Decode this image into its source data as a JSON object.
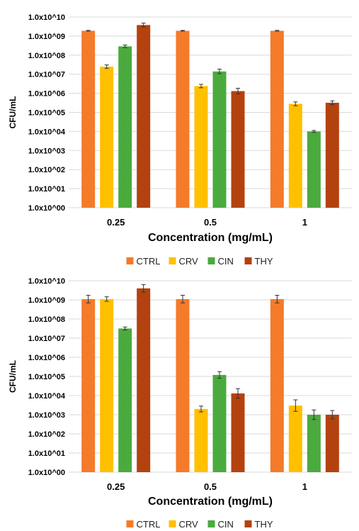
{
  "chart_data": [
    {
      "type": "bar",
      "scale": "log",
      "ylabel": "CFU/mL",
      "xlabel": "Concentration (mg/mL)",
      "ylim": [
        1,
        10000000000
      ],
      "y_tick_labels": [
        "1.0x10^00",
        "1.0x10^01",
        "1.0x10^02",
        "1.0x10^03",
        "1.0x10^04",
        "1.0x10^05",
        "1.0x10^06",
        "1.0x10^07",
        "1.0x10^08",
        "1.0x10^09",
        "1.0x10^10"
      ],
      "categories": [
        "0.25",
        "0.5",
        "1"
      ],
      "grid": true,
      "legend_position": "bottom",
      "series": [
        {
          "name": "CTRL",
          "color": "#F47B2A",
          "values": [
            1900000000,
            1900000000,
            1900000000
          ],
          "error": [
            0.02,
            0.02,
            0.02
          ]
        },
        {
          "name": "CRV",
          "color": "#FFC000",
          "values": [
            25000000,
            2400000,
            280000
          ],
          "error": [
            0.09,
            0.09,
            0.1
          ]
        },
        {
          "name": "CIN",
          "color": "#4BAA3E",
          "values": [
            290000000,
            14000000,
            10000
          ],
          "error": [
            0.07,
            0.12,
            0.05
          ]
        },
        {
          "name": "THY",
          "color": "#B4420E",
          "values": [
            3800000000,
            1300000,
            320000
          ],
          "error": [
            0.1,
            0.15,
            0.1
          ]
        }
      ]
    },
    {
      "type": "bar",
      "scale": "log",
      "ylabel": "CFU/mL",
      "xlabel": "Concentration (mg/mL)",
      "ylim": [
        1,
        10000000000
      ],
      "y_tick_labels": [
        "1.0x10^00",
        "1.0x10^01",
        "1.0x10^02",
        "1.0x10^03",
        "1.0x10^04",
        "1.0x10^05",
        "1.0x10^06",
        "1.0x10^07",
        "1.0x10^08",
        "1.0x10^09",
        "1.0x10^10"
      ],
      "categories": [
        "0.25",
        "0.5",
        "1"
      ],
      "grid": true,
      "legend_position": "bottom",
      "series": [
        {
          "name": "CTRL",
          "color": "#F47B2A",
          "values": [
            1100000000,
            1100000000,
            1100000000
          ],
          "error": [
            0.2,
            0.2,
            0.2
          ]
        },
        {
          "name": "CRV",
          "color": "#FFC000",
          "values": [
            1100000000,
            2000,
            3000
          ],
          "error": [
            0.12,
            0.15,
            0.3
          ]
        },
        {
          "name": "CIN",
          "color": "#4BAA3E",
          "values": [
            32000000,
            120000,
            1000
          ],
          "error": [
            0.08,
            0.17,
            0.25
          ]
        },
        {
          "name": "THY",
          "color": "#B4420E",
          "values": [
            4000000000,
            13000,
            1000
          ],
          "error": [
            0.2,
            0.25,
            0.22
          ]
        }
      ]
    }
  ]
}
